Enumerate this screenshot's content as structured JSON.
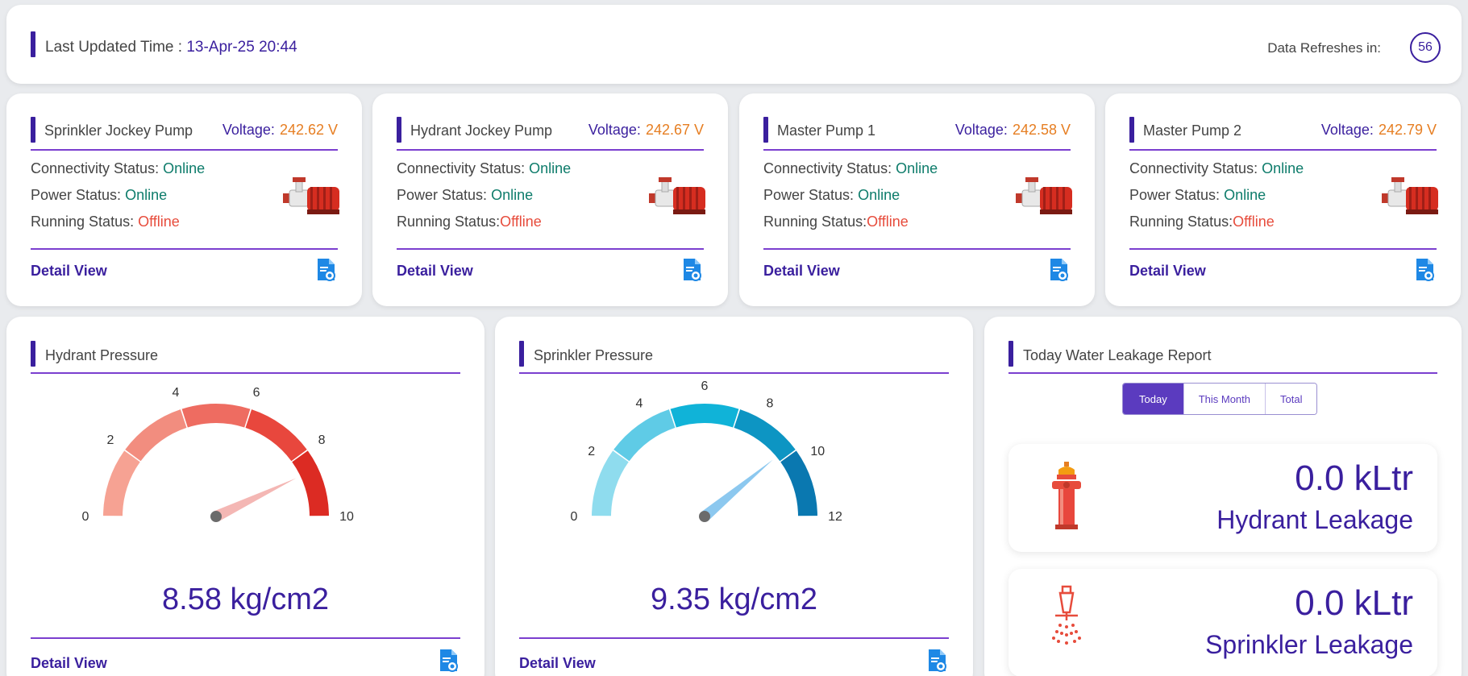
{
  "header": {
    "updated_label": "Last Updated Time : ",
    "updated_value": "13-Apr-25 20:44",
    "refresh_label": "Data Refreshes in:",
    "refresh_count": "56"
  },
  "pumps": [
    {
      "title": "Sprinkler Jockey Pump",
      "voltage_label": "Voltage:",
      "voltage": "242.62 V",
      "conn_label": "Connectivity Status: ",
      "conn": "Online",
      "power_label": "Power Status: ",
      "power": "Online",
      "run_label": "Running Status: ",
      "run": "Offline",
      "detail": "Detail View"
    },
    {
      "title": "Hydrant Jockey Pump",
      "voltage_label": "Voltage:",
      "voltage": "242.67 V",
      "conn_label": "Connectivity Status: ",
      "conn": "Online",
      "power_label": "Power Status: ",
      "power": "Online",
      "run_label": "Running Status:",
      "run": "Offline",
      "detail": "Detail View"
    },
    {
      "title": "Master Pump 1",
      "voltage_label": "Voltage:",
      "voltage": "242.58 V",
      "conn_label": "Connectivity Status: ",
      "conn": "Online",
      "power_label": "Power Status: ",
      "power": "Online",
      "run_label": "Running Status:",
      "run": "Offline",
      "detail": "Detail View"
    },
    {
      "title": "Master Pump 2",
      "voltage_label": "Voltage:",
      "voltage": "242.79 V",
      "conn_label": "Connectivity Status: ",
      "conn": "Online",
      "power_label": "Power Status: ",
      "power": "Online",
      "run_label": "Running Status:",
      "run": "Offline",
      "detail": "Detail View"
    }
  ],
  "hydrant": {
    "title": "Hydrant Pressure",
    "value": 8.58,
    "display": "8.58 kg/cm2",
    "min": 0,
    "max": 10,
    "ticks": [
      "0",
      "2",
      "4",
      "6",
      "8",
      "10"
    ],
    "colors": [
      "#f6a293",
      "#f28d7f",
      "#ee6c61",
      "#e8473d",
      "#dc2b23"
    ],
    "needle_color": "#f4b7b4",
    "detail": "Detail View"
  },
  "sprinkler": {
    "title": "Sprinkler Pressure",
    "value": 9.35,
    "display": "9.35 kg/cm2",
    "min": 0,
    "max": 12,
    "ticks": [
      "0",
      "2",
      "4",
      "6",
      "8",
      "10",
      "12"
    ],
    "colors": [
      "#8fdcee",
      "#5fcbe6",
      "#10b3d8",
      "#0d95c3",
      "#0a78b0"
    ],
    "needle_color": "#8cc8ef",
    "detail": "Detail View"
  },
  "leakage": {
    "title": "Today Water Leakage Report",
    "tabs": [
      "Today",
      "This Month",
      "Total"
    ],
    "active_tab": "Today",
    "hydrant_value": "0.0 kLtr",
    "hydrant_label": "Hydrant Leakage",
    "sprinkler_value": "0.0 kLtr",
    "sprinkler_label": "Sprinkler Leakage"
  }
}
